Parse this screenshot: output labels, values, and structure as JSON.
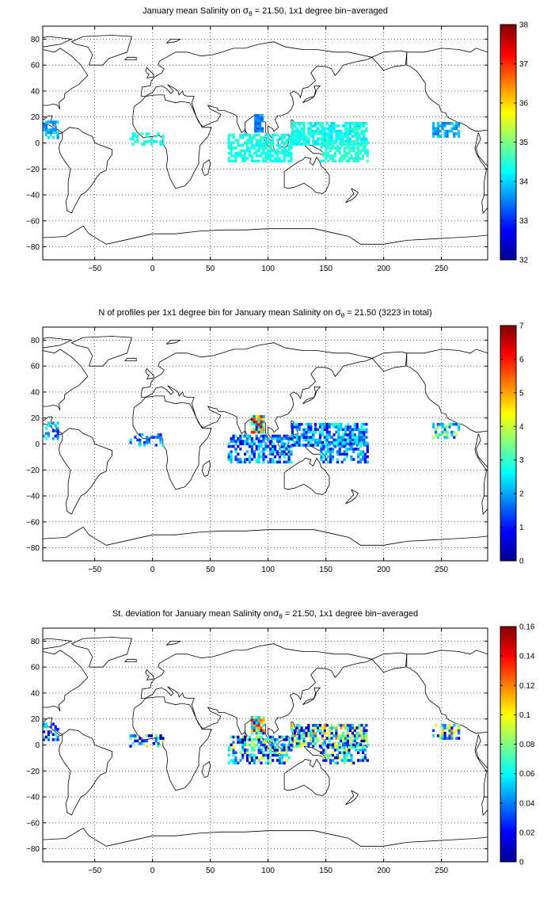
{
  "chart_data": [
    {
      "type": "heatmap",
      "title": "January mean Salinity on σθ = 21.50, 1x1 degree bin−averaged",
      "title_parts": {
        "pre": "January mean Salinity on ",
        "sym": "σ",
        "sub": "θ",
        "post": " = 21.50, 1x1 degree bin−averaged"
      },
      "xlabel": "",
      "ylabel": "",
      "xlim": [
        -95,
        290
      ],
      "ylim": [
        -90,
        90
      ],
      "xticks": [
        -50,
        0,
        50,
        100,
        150,
        200,
        250
      ],
      "yticks": [
        -80,
        -60,
        -40,
        -20,
        0,
        20,
        40,
        60,
        80
      ],
      "grid": true,
      "colorbar": {
        "min": 32,
        "max": 38,
        "ticks": [
          32,
          33,
          34,
          35,
          36,
          37,
          38
        ]
      },
      "colormap": "jet",
      "clusters": [
        {
          "lon": [
            88,
            95
          ],
          "lat": [
            8,
            20
          ],
          "value": [
            33.2,
            33.8
          ],
          "density": 0.95
        },
        {
          "lon": [
            120,
            185
          ],
          "lat": [
            -2,
            14
          ],
          "value": [
            34.0,
            34.6
          ],
          "density": 0.8
        },
        {
          "lon": [
            65,
            120
          ],
          "lat": [
            -15,
            5
          ],
          "value": [
            34.2,
            34.6
          ],
          "density": 0.65
        },
        {
          "lon": [
            145,
            185
          ],
          "lat": [
            -15,
            0
          ],
          "value": [
            34.3,
            34.7
          ],
          "density": 0.6
        },
        {
          "lon": [
            242,
            265
          ],
          "lat": [
            4,
            14
          ],
          "value": [
            33.4,
            34.0
          ],
          "density": 0.65
        },
        {
          "lon": [
            -95,
            -82
          ],
          "lat": [
            3,
            16
          ],
          "value": [
            33.4,
            34.2
          ],
          "density": 0.6
        },
        {
          "lon": [
            -20,
            8
          ],
          "lat": [
            -2,
            6
          ],
          "value": [
            34.2,
            34.6
          ],
          "density": 0.45
        }
      ]
    },
    {
      "type": "heatmap",
      "title": "N of profiles per 1x1 degree bin for January mean Salinity on σθ = 21.50 (3223 in total)",
      "title_parts": {
        "pre": "N of profiles per 1x1 degree bin for January mean Salinity on ",
        "sym": "σ",
        "sub": "θ",
        "post": " = 21.50 (3223 in total)"
      },
      "xlabel": "",
      "ylabel": "",
      "xlim": [
        -95,
        290
      ],
      "ylim": [
        -90,
        90
      ],
      "xticks": [
        -50,
        0,
        50,
        100,
        150,
        200,
        250
      ],
      "yticks": [
        -80,
        -60,
        -40,
        -20,
        0,
        20,
        40,
        60,
        80
      ],
      "grid": true,
      "colorbar": {
        "min": 0,
        "max": 7,
        "ticks": [
          0,
          1,
          2,
          3,
          4,
          5,
          6,
          7
        ]
      },
      "colormap": "jet",
      "clusters": [
        {
          "lon": [
            85,
            95
          ],
          "lat": [
            8,
            20
          ],
          "value": [
            1,
            7
          ],
          "density": 0.9
        },
        {
          "lon": [
            120,
            185
          ],
          "lat": [
            -2,
            14
          ],
          "value": [
            0.5,
            3
          ],
          "density": 0.7
        },
        {
          "lon": [
            65,
            120
          ],
          "lat": [
            -15,
            5
          ],
          "value": [
            0.5,
            3
          ],
          "density": 0.6
        },
        {
          "lon": [
            145,
            185
          ],
          "lat": [
            -15,
            0
          ],
          "value": [
            0.5,
            3
          ],
          "density": 0.5
        },
        {
          "lon": [
            242,
            265
          ],
          "lat": [
            4,
            14
          ],
          "value": [
            1,
            4
          ],
          "density": 0.55
        },
        {
          "lon": [
            -95,
            -82
          ],
          "lat": [
            3,
            16
          ],
          "value": [
            1,
            3
          ],
          "density": 0.5
        },
        {
          "lon": [
            -20,
            8
          ],
          "lat": [
            -2,
            6
          ],
          "value": [
            1,
            2.5
          ],
          "density": 0.4
        }
      ]
    },
    {
      "type": "heatmap",
      "title": "St. deviation for January mean Salinity onσθ = 21.50, 1x1 degree bin−averaged",
      "title_parts": {
        "pre": "St. deviation for January mean Salinity on",
        "sym": "σ",
        "sub": "θ",
        "post": " = 21.50, 1x1 degree bin−averaged"
      },
      "xlabel": "",
      "ylabel": "",
      "xlim": [
        -95,
        290
      ],
      "ylim": [
        -90,
        90
      ],
      "xticks": [
        -50,
        0,
        50,
        100,
        150,
        200,
        250
      ],
      "yticks": [
        -80,
        -60,
        -40,
        -20,
        0,
        20,
        40,
        60,
        80
      ],
      "grid": true,
      "colorbar": {
        "min": 0,
        "max": 0.16,
        "ticks": [
          0,
          0.02,
          0.04,
          0.06,
          0.08,
          0.1,
          0.12,
          0.14,
          0.16
        ]
      },
      "colormap": "jet",
      "clusters": [
        {
          "lon": [
            85,
            95
          ],
          "lat": [
            8,
            20
          ],
          "value": [
            0,
            0.16
          ],
          "density": 0.9
        },
        {
          "lon": [
            120,
            185
          ],
          "lat": [
            -2,
            14
          ],
          "value": [
            0,
            0.12
          ],
          "density": 0.7
        },
        {
          "lon": [
            65,
            120
          ],
          "lat": [
            -15,
            5
          ],
          "value": [
            0,
            0.1
          ],
          "density": 0.6
        },
        {
          "lon": [
            145,
            185
          ],
          "lat": [
            -15,
            0
          ],
          "value": [
            0,
            0.1
          ],
          "density": 0.5
        },
        {
          "lon": [
            242,
            265
          ],
          "lat": [
            4,
            14
          ],
          "value": [
            0,
            0.12
          ],
          "density": 0.55
        },
        {
          "lon": [
            -95,
            -82
          ],
          "lat": [
            3,
            16
          ],
          "value": [
            0,
            0.08
          ],
          "density": 0.5
        },
        {
          "lon": [
            -20,
            8
          ],
          "lat": [
            -2,
            6
          ],
          "value": [
            0,
            0.1
          ],
          "density": 0.4
        }
      ]
    }
  ]
}
